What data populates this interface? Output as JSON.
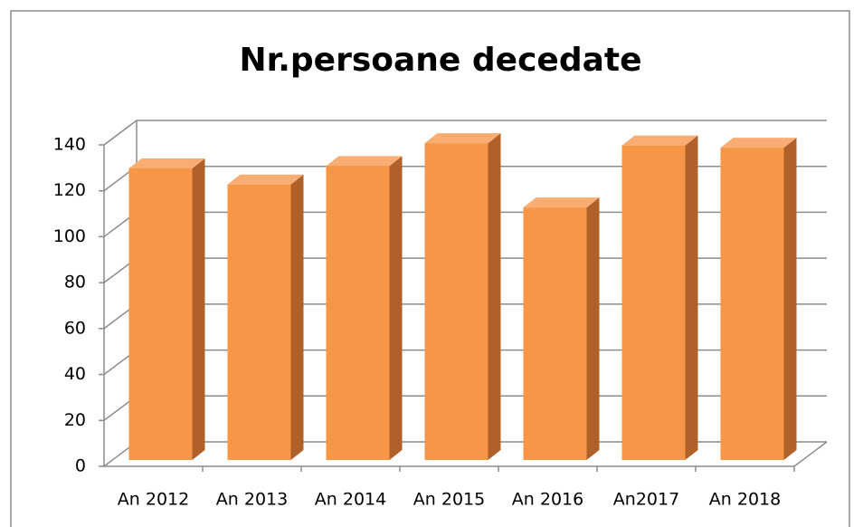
{
  "chart_data": {
    "type": "bar3d",
    "title": "Nr.persoane decedate",
    "categories": [
      "An 2012",
      "An 2013",
      "An 2014",
      "An 2015",
      "An 2016",
      "An2017",
      "An 2018"
    ],
    "values": [
      127,
      120,
      128,
      138,
      110,
      137,
      136
    ],
    "color": "#f79646",
    "ylim": [
      0,
      140
    ],
    "yticks": [
      0,
      20,
      40,
      60,
      80,
      100,
      120,
      140
    ],
    "grid": true
  }
}
